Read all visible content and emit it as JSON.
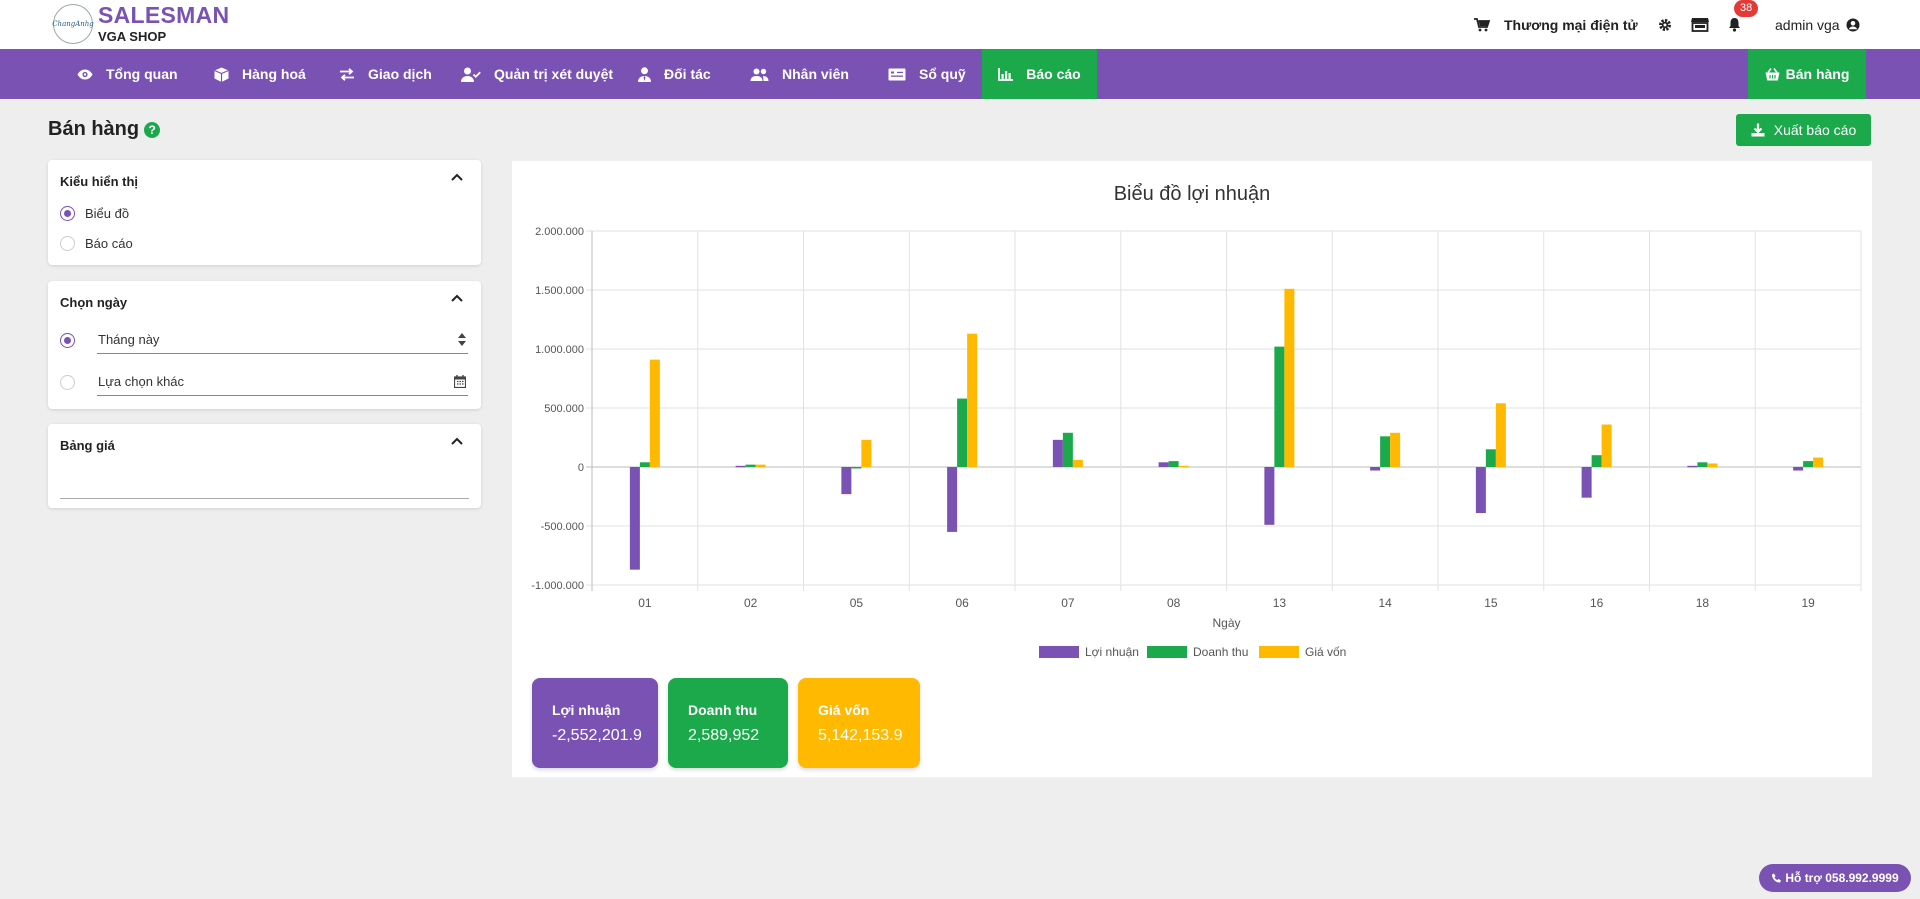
{
  "header": {
    "brand_name": "SALESMAN",
    "shop_name": "VGA SHOP",
    "logo_text": "ChangAnhg",
    "ecommerce_label": "Thương mại điện tử",
    "notification_count": "38",
    "user_label": "admin vga"
  },
  "nav": {
    "items": [
      {
        "label": "Tổng quan",
        "icon": "eye-icon"
      },
      {
        "label": "Hàng hoá",
        "icon": "box-icon"
      },
      {
        "label": "Giao dịch",
        "icon": "exchange-icon"
      },
      {
        "label": "Quản trị xét duyệt",
        "icon": "user-check-icon"
      },
      {
        "label": "Đối tác",
        "icon": "user-tie-icon"
      },
      {
        "label": "Nhân viên",
        "icon": "users-icon"
      },
      {
        "label": "Sổ quỹ",
        "icon": "money-check-icon"
      },
      {
        "label": "Báo cáo",
        "icon": "chart-bar-icon",
        "active": true
      }
    ],
    "sell_button": "Bán hàng"
  },
  "page": {
    "title": "Bán hàng",
    "help_icon": "?",
    "export_button": "Xuất báo cáo"
  },
  "filters": {
    "display_type": {
      "title": "Kiểu hiển thị",
      "options": [
        "Biểu đồ",
        "Báo cáo"
      ],
      "selected": "Biểu đồ"
    },
    "date": {
      "title": "Chọn ngày",
      "preset_value": "Tháng này",
      "custom_placeholder": "Lựa chọn khác"
    },
    "price_list": {
      "title": "Bảng giá",
      "value": ""
    }
  },
  "chart_data": {
    "type": "bar",
    "title": "Biểu đồ lợi nhuận",
    "xlabel": "Ngày",
    "ylabel": "",
    "categories": [
      "01",
      "02",
      "05",
      "06",
      "07",
      "08",
      "13",
      "14",
      "15",
      "16",
      "18",
      "19"
    ],
    "ylim": [
      -1000000,
      2000000
    ],
    "yticks": [
      2000000,
      1500000,
      1000000,
      500000,
      0,
      -500000,
      -1000000
    ],
    "ytick_labels": [
      "2.000.000",
      "1.500.000",
      "1.000.000",
      "500.000",
      "0",
      "-500.000",
      "-1.000.000"
    ],
    "grid": true,
    "legend_position": "bottom",
    "series": [
      {
        "name": "Lợi nhuận",
        "color": "#7a52b3",
        "values": [
          -870000,
          10000,
          -230000,
          -550000,
          230000,
          40000,
          -490000,
          -30000,
          -390000,
          -260000,
          10000,
          -30000
        ]
      },
      {
        "name": "Doanh thu",
        "color": "#1ba94c",
        "values": [
          40000,
          20000,
          0,
          580000,
          290000,
          50000,
          1020000,
          260000,
          150000,
          100000,
          40000,
          50000
        ]
      },
      {
        "name": "Giá vốn",
        "color": "#ffb900",
        "values": [
          910000,
          20000,
          230000,
          1130000,
          60000,
          10000,
          1510000,
          290000,
          540000,
          360000,
          30000,
          80000
        ]
      }
    ]
  },
  "summary": [
    {
      "label": "Lợi nhuận",
      "value": "-2,552,201.9",
      "color": "#7a52b3"
    },
    {
      "label": "Doanh thu",
      "value": "2,589,952",
      "color": "#1ba94c"
    },
    {
      "label": "Giá vốn",
      "value": "5,142,153.9",
      "color": "#ffb900"
    }
  ],
  "support": {
    "label": "Hỗ trợ 058.992.9999"
  }
}
